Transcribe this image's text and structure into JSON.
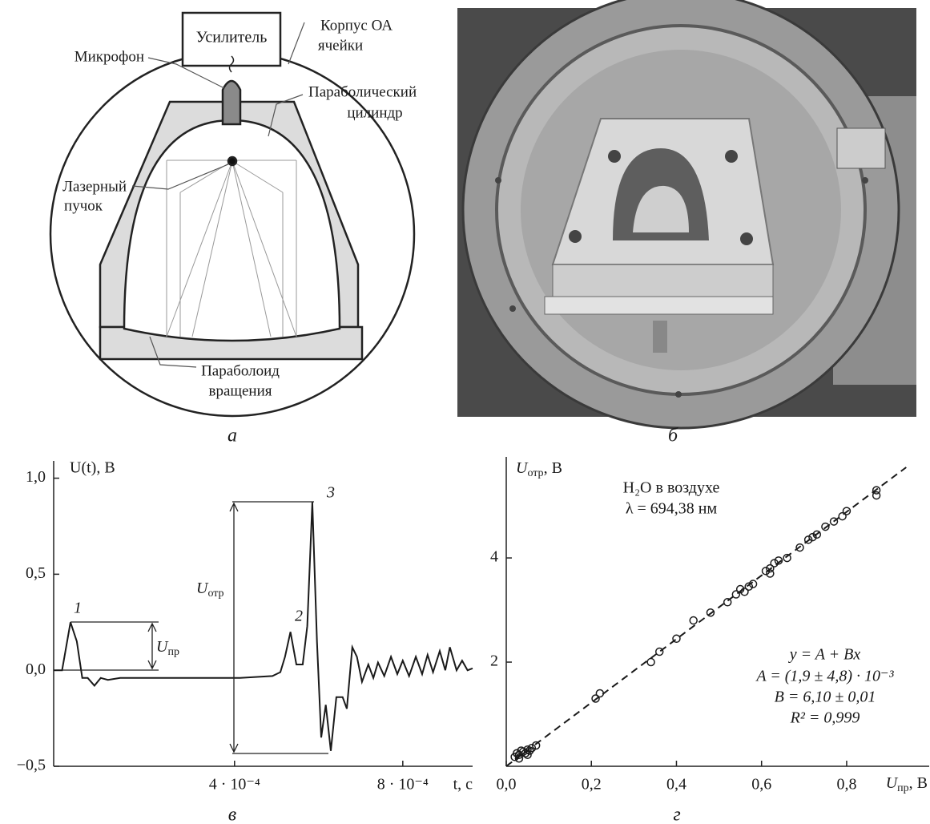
{
  "diagram": {
    "labels": {
      "amplifier": "Усилитель",
      "housing": [
        "Корпус ОА",
        "ячейки"
      ],
      "microphone": "Микрофон",
      "cylinder": [
        "Параболический",
        "цилиндр"
      ],
      "laser": [
        "Лазерный",
        "пучок"
      ],
      "paraboloid": [
        "Параболоид",
        "вращения"
      ]
    },
    "caption": "а"
  },
  "photo": {
    "caption": "б"
  },
  "chart_data": [
    {
      "type": "line",
      "caption": "в",
      "ylabel": "U(t), В",
      "xlabel": "t, с",
      "x": [
        -3e-05,
        -1e-05,
        1e-05,
        2.5e-05,
        3.8e-05,
        5.1e-05,
        6.7e-05,
        8.2e-05,
        9.9e-05,
        0.000128,
        0.000223,
        0.000318,
        0.000413,
        0.00049,
        0.000509,
        0.00052,
        0.000533,
        0.000547,
        0.000562,
        0.000573,
        0.000585,
        0.000596,
        0.000606,
        0.000617,
        0.000629,
        0.000642,
        0.000657,
        0.000667,
        0.00068,
        0.000691,
        0.000703,
        0.000718,
        0.00073,
        0.000741,
        0.000756,
        0.000772,
        0.000787,
        0.0008,
        0.000815,
        0.000831,
        0.000846,
        0.000859,
        0.000872,
        0.000888,
        0.000901,
        0.000912,
        0.000928,
        0.000941,
        0.000954,
        0.000966
      ],
      "series": [
        {
          "color": "#1a1a1a",
          "values": [
            0,
            0,
            0.25,
            0.15,
            -0.04,
            -0.04,
            -0.08,
            -0.04,
            -0.05,
            -0.04,
            -0.04,
            -0.04,
            -0.04,
            -0.03,
            -0.01,
            0.07,
            0.2,
            0.03,
            0.03,
            0.23,
            0.875,
            0.15,
            -0.35,
            -0.18,
            -0.42,
            -0.14,
            -0.14,
            -0.2,
            0.12,
            0.07,
            -0.06,
            0.03,
            -0.04,
            0.04,
            -0.03,
            0.07,
            -0.02,
            0.05,
            -0.03,
            0.07,
            -0.02,
            0.08,
            -0.01,
            0.1,
            0,
            0.12,
            0,
            0.05,
            0,
            0.01
          ]
        }
      ],
      "xlim": [
        -3e-05,
        0.000966
      ],
      "ylim": [
        -0.5,
        1.09
      ],
      "xticks": [
        {
          "value": 0.0004,
          "label": "4 · 10⁻⁴"
        },
        {
          "value": 0.0008,
          "label": "8 · 10⁻⁴"
        }
      ],
      "yticks": [
        {
          "value": 1,
          "label": "1,0"
        },
        {
          "value": 0.5,
          "label": "0,5"
        },
        {
          "value": 0,
          "label": "0,0"
        },
        {
          "value": -0.5,
          "label": "−0,5"
        }
      ],
      "annotations": [
        "1",
        "2",
        "3"
      ],
      "measures": [
        [
          "U",
          "пр"
        ],
        [
          "U",
          "отр"
        ]
      ]
    },
    {
      "type": "scatter",
      "caption": "г",
      "ylabel": [
        "U",
        "отр",
        ", В"
      ],
      "xlabel": [
        "U",
        "пр",
        ", В"
      ],
      "x": [
        0.02,
        0.025,
        0.03,
        0.035,
        0.04,
        0.045,
        0.05,
        0.055,
        0.06,
        0.07,
        0.03,
        0.05,
        0.21,
        0.22,
        0.34,
        0.36,
        0.4,
        0.44,
        0.48,
        0.52,
        0.54,
        0.55,
        0.56,
        0.58,
        0.61,
        0.62,
        0.63,
        0.64,
        0.66,
        0.69,
        0.71,
        0.72,
        0.73,
        0.75,
        0.77,
        0.79,
        0.8,
        0.87,
        0.87,
        0.57,
        0.62
      ],
      "series": [
        {
          "type": "scatter",
          "color": "#1a1a1a",
          "values": [
            0.18,
            0.25,
            0.22,
            0.3,
            0.28,
            0.25,
            0.32,
            0.3,
            0.35,
            0.4,
            0.15,
            0.22,
            1.3,
            1.4,
            2.0,
            2.2,
            2.45,
            2.8,
            2.95,
            3.15,
            3.3,
            3.4,
            3.35,
            3.5,
            3.75,
            3.8,
            3.9,
            3.95,
            4.0,
            4.2,
            4.35,
            4.4,
            4.45,
            4.6,
            4.7,
            4.8,
            4.9,
            5.3,
            5.2,
            3.45,
            3.7
          ]
        },
        {
          "type": "line",
          "style": "dashed",
          "color": "#1a1a1a",
          "x": [
            0,
            0.94
          ],
          "values": [
            0.0019,
            5.74
          ]
        }
      ],
      "xlim": [
        0,
        0.994
      ],
      "ylim": [
        0,
        5.94
      ],
      "xticks": [
        {
          "value": 0,
          "label": "0,0"
        },
        {
          "value": 0.2,
          "label": "0,2"
        },
        {
          "value": 0.4,
          "label": "0,4"
        },
        {
          "value": 0.6,
          "label": "0,6"
        },
        {
          "value": 0.8,
          "label": "0,8"
        }
      ],
      "yticks": [
        2,
        4
      ],
      "annotations": [
        "H₂O в воздухе",
        "λ = 694,38 нм",
        "y = A + Bx",
        "A = (1,9 ± 4,8) · 10⁻³",
        "B = 6,10 ± 0,01",
        "R² = 0,999"
      ]
    }
  ]
}
